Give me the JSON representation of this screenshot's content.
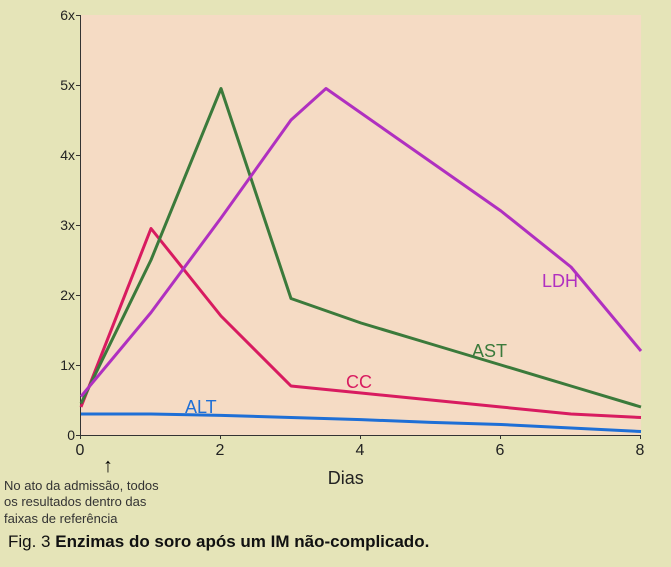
{
  "chart": {
    "type": "line",
    "background_color": "#e5e4b8",
    "plot_background_color": "#f5dbc4",
    "axis_color": "#333333",
    "xlabel": "Dias",
    "label_fontsize": 18,
    "tick_fontsize": 14,
    "xlim": [
      0,
      8
    ],
    "ylim": [
      0,
      6
    ],
    "xticks": [
      0,
      2,
      4,
      6,
      8
    ],
    "xtick_labels": [
      "0",
      "2",
      "4",
      "6",
      "8"
    ],
    "yticks": [
      0,
      1,
      2,
      3,
      4,
      5,
      6
    ],
    "ytick_labels": [
      "0",
      "1x",
      "2x",
      "3x",
      "4x",
      "5x",
      "6x"
    ],
    "line_width": 3,
    "series": {
      "ALT": {
        "color": "#1e6fd6",
        "label": "ALT",
        "label_pos": {
          "x": 1.5,
          "y": 0.55
        },
        "x": [
          0,
          1,
          2,
          3,
          4,
          5,
          6,
          7,
          8
        ],
        "y": [
          0.3,
          0.3,
          0.28,
          0.25,
          0.22,
          0.18,
          0.15,
          0.1,
          0.05
        ]
      },
      "CC": {
        "color": "#d81b60",
        "label": "CC",
        "label_pos": {
          "x": 3.8,
          "y": 0.9
        },
        "x": [
          0,
          1,
          2,
          3,
          4,
          5,
          6,
          7,
          8
        ],
        "y": [
          0.4,
          2.95,
          1.7,
          0.7,
          0.6,
          0.5,
          0.4,
          0.3,
          0.25
        ]
      },
      "AST": {
        "color": "#3b7a3b",
        "label": "AST",
        "label_pos": {
          "x": 5.6,
          "y": 1.35
        },
        "x": [
          0,
          1,
          2,
          3,
          4,
          5,
          6,
          7,
          8
        ],
        "y": [
          0.45,
          2.5,
          4.95,
          1.95,
          1.6,
          1.3,
          1.0,
          0.7,
          0.4
        ]
      },
      "LDH": {
        "color": "#b030c0",
        "label": "LDH",
        "label_pos": {
          "x": 6.6,
          "y": 2.35
        },
        "x": [
          0,
          1,
          2,
          3,
          3.5,
          4,
          5,
          6,
          7,
          8
        ],
        "y": [
          0.55,
          1.75,
          3.1,
          4.5,
          4.95,
          4.6,
          3.9,
          3.2,
          2.4,
          1.2
        ]
      }
    }
  },
  "admission": {
    "arrow_glyph": "↑",
    "text_l1": "No ato da admissão, todos",
    "text_l2": "os resultados dentro das",
    "text_l3": "faixas de referência"
  },
  "caption": {
    "prefix": "Fig. 3 ",
    "bold": "Enzimas do soro após um IM não-complicado."
  }
}
